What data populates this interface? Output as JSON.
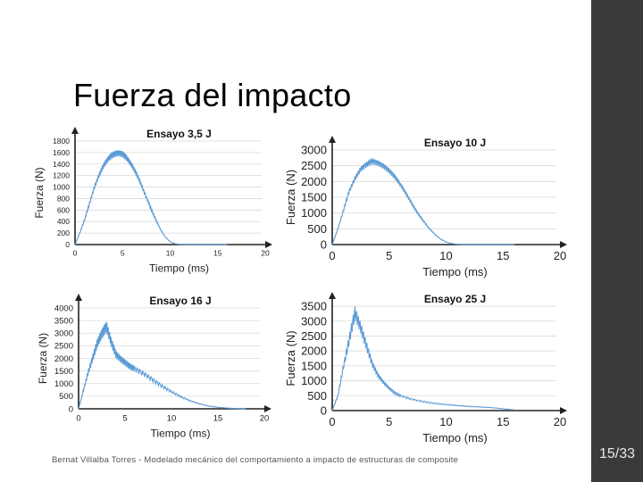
{
  "slide": {
    "title": "Fuerza del impacto",
    "footer": "Bernat Villalba Torres - Modelado mecánico del comportamiento a impacto de estructuras de composite",
    "page": "15/33"
  },
  "colors": {
    "series": "#5b9bd5",
    "axis": "#222222",
    "grid": "#d9d9d9",
    "sidebar": "#3a3a3a"
  },
  "chart_data": [
    {
      "type": "line",
      "title": "Ensayo 3,5 J",
      "xlabel": "Tiempo (ms)",
      "ylabel": "Fuerza (N)",
      "xlim": [
        0,
        20
      ],
      "ylim": [
        0,
        1800
      ],
      "xticks": [
        "0",
        "5",
        "10",
        "15",
        "20"
      ],
      "yticks": [
        "0",
        "200",
        "400",
        "600",
        "800",
        "1000",
        "1200",
        "1400",
        "1600",
        "1800"
      ],
      "grid": true,
      "series": [
        {
          "x": [
            0,
            0.5,
            1,
            1.5,
            2,
            2.5,
            3,
            3.5,
            4,
            4.5,
            5,
            5.5,
            6,
            6.5,
            7,
            7.5,
            8,
            8.5,
            9,
            9.5,
            10,
            10.5,
            11,
            12,
            13,
            14,
            15,
            16
          ],
          "values": [
            0,
            200,
            430,
            700,
            980,
            1200,
            1380,
            1500,
            1570,
            1600,
            1580,
            1500,
            1380,
            1220,
            1030,
            820,
            620,
            430,
            260,
            130,
            50,
            15,
            5,
            0,
            0,
            0,
            0,
            0
          ]
        }
      ]
    },
    {
      "type": "line",
      "title": "Ensayo 10 J",
      "xlabel": "Tiempo (ms)",
      "ylabel": "Fuerza (N)",
      "xlim": [
        0,
        20
      ],
      "ylim": [
        0,
        3000
      ],
      "xticks": [
        "0",
        "5",
        "10",
        "15",
        "20"
      ],
      "yticks": [
        "0",
        "500",
        "1000",
        "1500",
        "2000",
        "2500",
        "3000"
      ],
      "grid": true,
      "series": [
        {
          "x": [
            0,
            0.5,
            1,
            1.5,
            2,
            2.5,
            3,
            3.5,
            4,
            4.5,
            5,
            5.5,
            6,
            6.5,
            7,
            7.5,
            8,
            8.5,
            9,
            9.5,
            10,
            10.5,
            11,
            12,
            13,
            14,
            15,
            16
          ],
          "values": [
            0,
            500,
            1100,
            1700,
            2100,
            2400,
            2550,
            2650,
            2600,
            2500,
            2350,
            2150,
            1900,
            1600,
            1300,
            1000,
            750,
            520,
            330,
            180,
            80,
            30,
            10,
            0,
            0,
            0,
            0,
            0
          ]
        }
      ]
    },
    {
      "type": "line",
      "title": "Ensayo 16 J",
      "xlabel": "Tiempo (ms)",
      "ylabel": "Fuerza (N)",
      "xlim": [
        0,
        20
      ],
      "ylim": [
        0,
        4000
      ],
      "xticks": [
        "0",
        "5",
        "10",
        "15",
        "20"
      ],
      "yticks": [
        "0",
        "500",
        "1000",
        "1500",
        "2000",
        "2500",
        "3000",
        "3500",
        "4000"
      ],
      "grid": true,
      "series": [
        {
          "x": [
            0,
            0.5,
            1,
            1.5,
            2,
            2.5,
            3,
            3.5,
            4,
            4.5,
            5,
            5.5,
            6,
            7,
            8,
            9,
            10,
            11,
            12,
            13,
            14,
            15,
            16,
            17,
            18
          ],
          "values": [
            0,
            700,
            1400,
            2000,
            2600,
            3000,
            3300,
            2700,
            2200,
            2000,
            1850,
            1700,
            1600,
            1400,
            1150,
            900,
            680,
            480,
            320,
            200,
            110,
            60,
            30,
            10,
            0
          ]
        }
      ]
    },
    {
      "type": "line",
      "title": "Ensayo 25 J",
      "xlabel": "Tiempo (ms)",
      "ylabel": "Fuerza (N)",
      "xlim": [
        0,
        20
      ],
      "ylim": [
        0,
        3500
      ],
      "xticks": [
        "0",
        "5",
        "10",
        "15",
        "20"
      ],
      "yticks": [
        "0",
        "500",
        "1000",
        "1500",
        "2000",
        "2500",
        "3000",
        "3500"
      ],
      "grid": true,
      "series": [
        {
          "x": [
            0,
            0.5,
            1,
            1.5,
            2,
            2.5,
            3,
            3.5,
            4,
            4.5,
            5,
            5.5,
            6,
            7,
            8,
            9,
            10,
            11,
            12,
            13,
            14,
            15,
            16
          ],
          "values": [
            0,
            500,
            1500,
            2400,
            3300,
            2800,
            2200,
            1600,
            1200,
            950,
            750,
            600,
            500,
            380,
            300,
            240,
            200,
            170,
            140,
            120,
            100,
            60,
            20
          ]
        }
      ]
    }
  ]
}
